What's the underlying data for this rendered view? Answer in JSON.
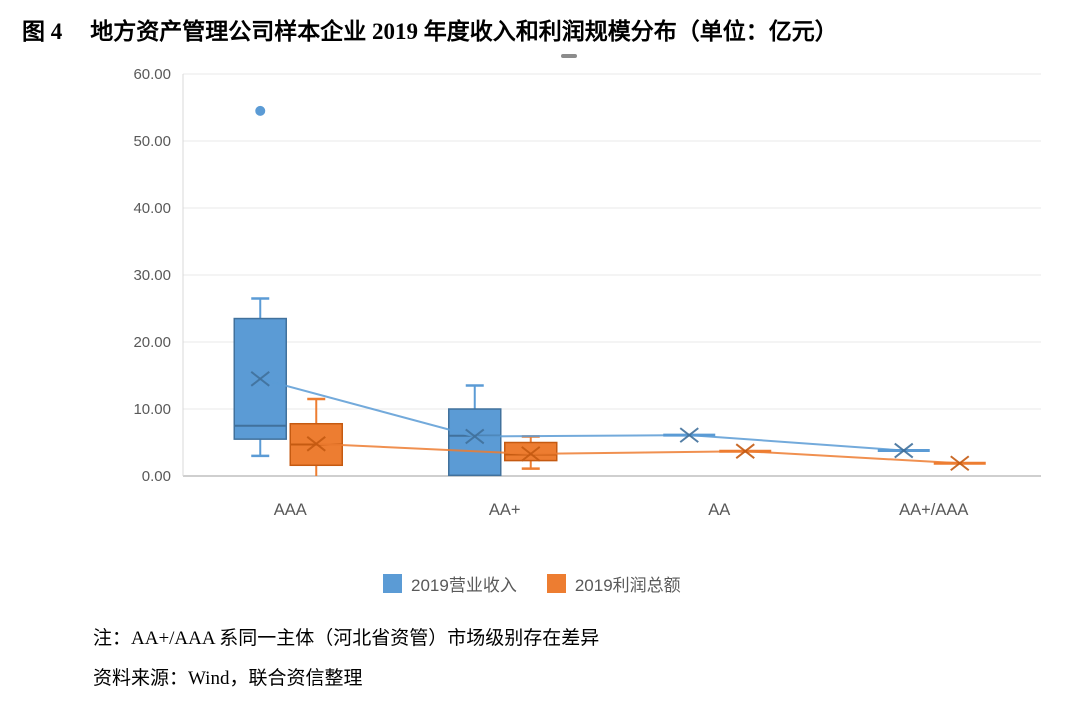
{
  "title": {
    "prefix": "图 4",
    "text": "地方资产管理公司样本企业 2019 年度收入和利润规模分布（单位：亿元）"
  },
  "chart_data": {
    "type": "box",
    "categories": [
      "AAA",
      "AA+",
      "AA",
      "AA+/AAA"
    ],
    "y_axis": {
      "min": 0,
      "max": 60,
      "step": 10,
      "tick_labels": [
        "0.00",
        "10.00",
        "20.00",
        "30.00",
        "40.00",
        "50.00",
        "60.00"
      ]
    },
    "grid": true,
    "legend_position": "bottom",
    "series": [
      {
        "name": "2019营业收入",
        "color": "#5B9BD5",
        "border_color": "#41719C",
        "boxes": [
          {
            "category": "AAA",
            "whisker_low": 3.0,
            "q1": 5.5,
            "median": 7.5,
            "q3": 23.5,
            "whisker_high": 26.5,
            "mean": 14.5,
            "outliers": [
              54.5
            ]
          },
          {
            "category": "AA+",
            "whisker_low": 0.1,
            "q1": 0.1,
            "median": 6.0,
            "q3": 10.0,
            "whisker_high": 13.5,
            "mean": 5.9,
            "outliers": []
          },
          {
            "category": "AA",
            "whisker_low": 6.1,
            "q1": 6.1,
            "median": 6.1,
            "q3": 6.1,
            "whisker_high": 6.1,
            "mean": 6.1,
            "outliers": []
          },
          {
            "category": "AA+/AAA",
            "whisker_low": 3.8,
            "q1": 3.8,
            "median": 3.8,
            "q3": 3.8,
            "whisker_high": 3.8,
            "mean": 3.8,
            "outliers": []
          }
        ]
      },
      {
        "name": "2019利润总额",
        "color": "#ED7D31",
        "border_color": "#C55A11",
        "boxes": [
          {
            "category": "AAA",
            "whisker_low": 0.0,
            "q1": 1.6,
            "median": 4.7,
            "q3": 7.8,
            "whisker_high": 11.5,
            "mean": 4.8,
            "outliers": []
          },
          {
            "category": "AA+",
            "whisker_low": 1.1,
            "q1": 2.3,
            "median": 3.2,
            "q3": 5.0,
            "whisker_high": 5.9,
            "mean": 3.3,
            "outliers": []
          },
          {
            "category": "AA",
            "whisker_low": 3.7,
            "q1": 3.7,
            "median": 3.7,
            "q3": 3.7,
            "whisker_high": 3.7,
            "mean": 3.7,
            "outliers": []
          },
          {
            "category": "AA+/AAA",
            "whisker_low": 1.9,
            "q1": 1.9,
            "median": 1.9,
            "q3": 1.9,
            "whisker_high": 1.9,
            "mean": 1.9,
            "outliers": []
          }
        ]
      }
    ]
  },
  "legend": {
    "items": [
      {
        "label": "2019营业收入",
        "color": "#5B9BD5"
      },
      {
        "label": "2019利润总额",
        "color": "#ED7D31"
      }
    ]
  },
  "notes": {
    "line1": "注：AA+/AAA 系同一主体（河北省资管）市场级别存在差异",
    "line2": "资料来源：Wind，联合资信整理"
  }
}
